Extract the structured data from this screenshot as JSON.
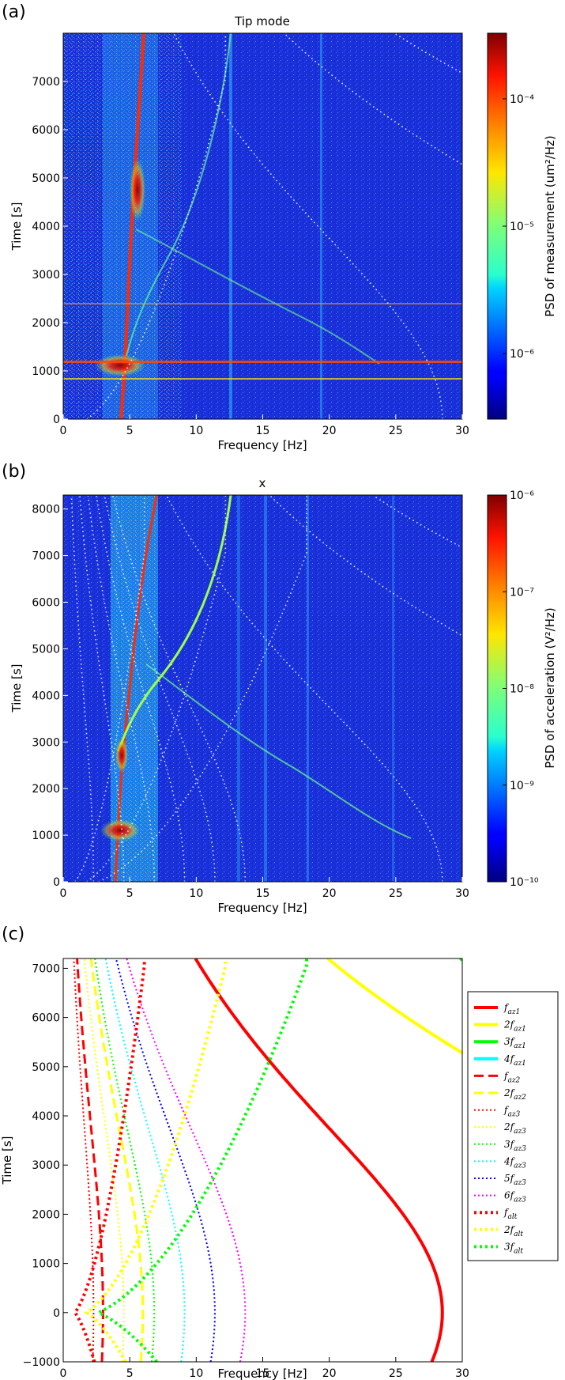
{
  "chart_data": [
    {
      "type": "heatmap",
      "panel_label": "(a)",
      "title": "Tip mode",
      "xlabel": "Frequency [Hz]",
      "ylabel": "Time [s]",
      "xlim": [
        0,
        30
      ],
      "ylim": [
        0,
        8000
      ],
      "xticks": [
        "0",
        "5",
        "10",
        "15",
        "20",
        "25",
        "30"
      ],
      "yticks": [
        "0",
        "1000",
        "2000",
        "3000",
        "4000",
        "5000",
        "6000",
        "7000"
      ],
      "colorbar": {
        "label": "PSD of measurement (um²/Hz)",
        "scale": "log",
        "ticks": [
          "10⁻⁶",
          "10⁻⁵",
          "10⁻⁴"
        ],
        "colormap": "jet"
      }
    },
    {
      "type": "heatmap",
      "panel_label": "(b)",
      "title": "x",
      "xlabel": "Frequency [Hz]",
      "ylabel": "Time [s]",
      "xlim": [
        0,
        30
      ],
      "ylim": [
        0,
        8300
      ],
      "xticks": [
        "0",
        "5",
        "10",
        "15",
        "20",
        "25",
        "30"
      ],
      "yticks": [
        "0",
        "1000",
        "2000",
        "3000",
        "4000",
        "5000",
        "6000",
        "7000",
        "8000"
      ],
      "colorbar": {
        "label": "PSD of acceleration (V²/Hz)",
        "scale": "log",
        "ticks": [
          "10⁻¹⁰",
          "10⁻⁹",
          "10⁻⁸",
          "10⁻⁷",
          "10⁻⁶"
        ],
        "colormap": "jet"
      }
    },
    {
      "type": "line",
      "panel_label": "(c)",
      "title": "",
      "xlabel": "Frequency [Hz]",
      "ylabel": "Time [s]",
      "xlim": [
        0,
        30
      ],
      "ylim": [
        -1000,
        7200
      ],
      "xticks": [
        "0",
        "5",
        "10",
        "15",
        "20",
        "25",
        "30"
      ],
      "yticks": [
        "−1000",
        "0",
        "1000",
        "2000",
        "3000",
        "4000",
        "5000",
        "6000",
        "7000"
      ],
      "legend_position": "right",
      "model": {
        "f_az1_peak_hz": 28.5,
        "peak_time_s": 0,
        "f_alt_min_hz": 0.2,
        "f_alt_max_hz": 6.1
      },
      "series": [
        {
          "name": "f_az1",
          "label": "f",
          "sub": "az1",
          "prefix": "",
          "color": "#ff0000",
          "style": "solid",
          "kind": "az",
          "mult": 1
        },
        {
          "name": "2f_az1",
          "label": "f",
          "sub": "az1",
          "prefix": "2",
          "color": "#ffff00",
          "style": "solid",
          "kind": "az",
          "mult": 2
        },
        {
          "name": "3f_az1",
          "label": "f",
          "sub": "az1",
          "prefix": "3",
          "color": "#00ff00",
          "style": "solid",
          "kind": "az",
          "mult": 3
        },
        {
          "name": "4f_az1",
          "label": "f",
          "sub": "az1",
          "prefix": "4",
          "color": "#00ffff",
          "style": "solid",
          "kind": "az",
          "mult": 4
        },
        {
          "name": "f_az2",
          "label": "f",
          "sub": "az2",
          "prefix": "",
          "color": "#ff0000",
          "style": "dashed",
          "kind": "az",
          "mult": 0.105
        },
        {
          "name": "2f_az2",
          "label": "f",
          "sub": "az2",
          "prefix": "2",
          "color": "#ffff00",
          "style": "dashed",
          "kind": "az",
          "mult": 0.21
        },
        {
          "name": "f_az3",
          "label": "f",
          "sub": "az3",
          "prefix": "",
          "color": "#ff0000",
          "style": "dotted",
          "kind": "az",
          "mult": 0.08
        },
        {
          "name": "2f_az3",
          "label": "f",
          "sub": "az3",
          "prefix": "2",
          "color": "#ffff00",
          "style": "dotted",
          "kind": "az",
          "mult": 0.16
        },
        {
          "name": "3f_az3",
          "label": "f",
          "sub": "az3",
          "prefix": "3",
          "color": "#00ff00",
          "style": "dotted",
          "kind": "az",
          "mult": 0.24
        },
        {
          "name": "4f_az3",
          "label": "f",
          "sub": "az3",
          "prefix": "4",
          "color": "#00ffff",
          "style": "dotted",
          "kind": "az",
          "mult": 0.32
        },
        {
          "name": "5f_az3",
          "label": "f",
          "sub": "az3",
          "prefix": "5",
          "color": "#0000ff",
          "style": "dotted",
          "kind": "az",
          "mult": 0.4
        },
        {
          "name": "6f_az3",
          "label": "f",
          "sub": "az3",
          "prefix": "6",
          "color": "#ff00ff",
          "style": "dotted",
          "kind": "az",
          "mult": 0.48
        },
        {
          "name": "f_alt",
          "label": "f",
          "sub": "alt",
          "prefix": "",
          "color": "#ff0000",
          "style": "dashdot",
          "kind": "alt",
          "mult": 1
        },
        {
          "name": "2f_alt",
          "label": "f",
          "sub": "alt",
          "prefix": "2",
          "color": "#ffff00",
          "style": "dashdot",
          "kind": "alt",
          "mult": 2
        },
        {
          "name": "3f_alt",
          "label": "f",
          "sub": "alt",
          "prefix": "3",
          "color": "#00ff00",
          "style": "dashdot",
          "kind": "alt",
          "mult": 3
        }
      ]
    }
  ]
}
